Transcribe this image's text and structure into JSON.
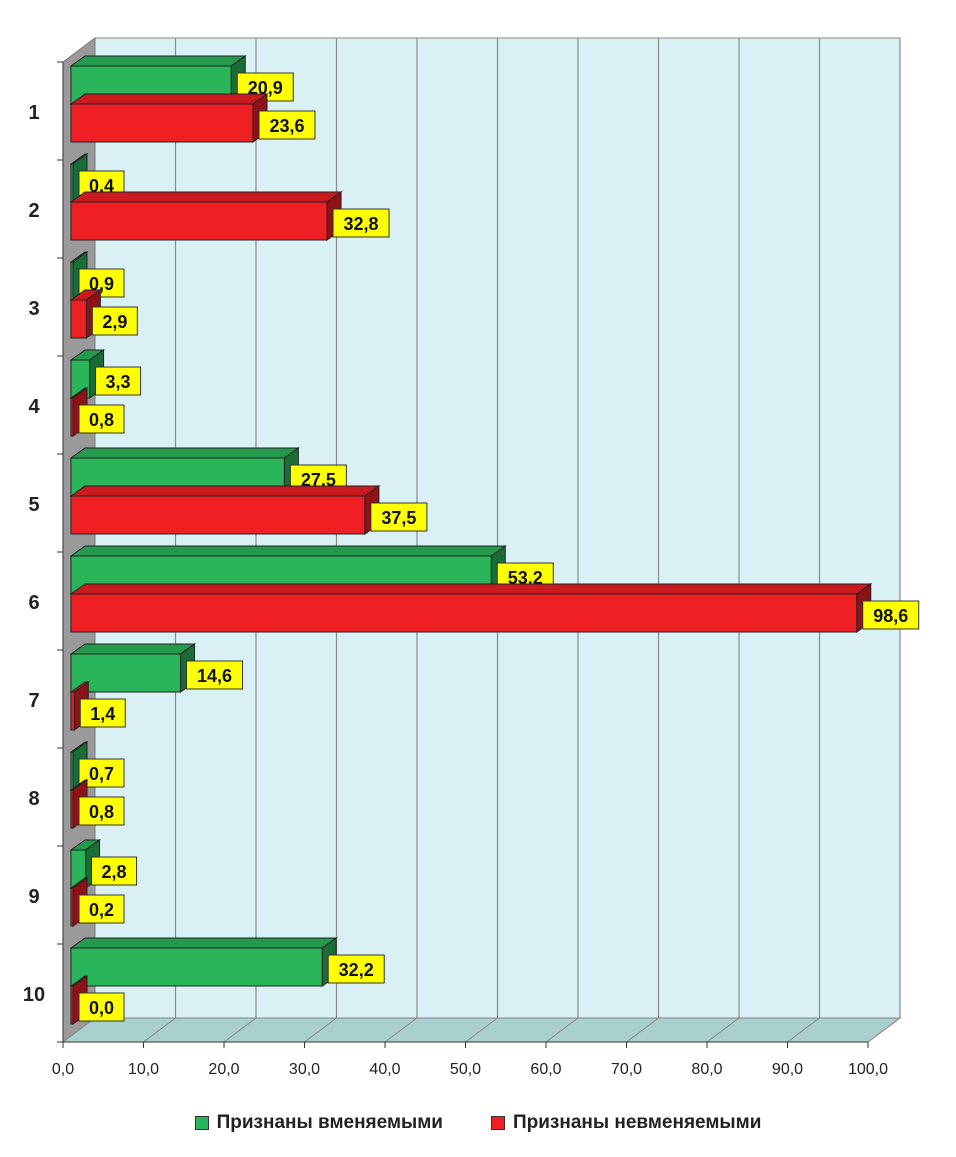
{
  "chart_data": {
    "type": "bar",
    "orientation": "horizontal",
    "three_d": true,
    "categories": [
      "1",
      "2",
      "3",
      "4",
      "5",
      "6",
      "7",
      "8",
      "9",
      "10"
    ],
    "series": [
      {
        "name": "Признаны вменяемыми",
        "color": "#2bb55a",
        "values": [
          20.9,
          0.4,
          0.9,
          3.3,
          27.5,
          53.2,
          14.6,
          0.7,
          2.8,
          32.2
        ]
      },
      {
        "name": "Признаны невменяемыми",
        "color": "#ee2024",
        "values": [
          23.6,
          32.8,
          2.9,
          0.8,
          37.5,
          98.6,
          1.4,
          0.8,
          0.2,
          0.0
        ]
      }
    ],
    "value_labels": {
      "s0": [
        "20,9",
        "0,4",
        "0,9",
        "3,3",
        "27,5",
        "53,2",
        "14,6",
        "0,7",
        "2,8",
        "32,2"
      ],
      "s1": [
        "23,6",
        "32,8",
        "2,9",
        "0,8",
        "37,5",
        "98,6",
        "1,4",
        "0,8",
        "0,2",
        "0,0"
      ]
    },
    "x_ticks": [
      "0,0",
      "10,0",
      "20,0",
      "30,0",
      "40,0",
      "50,0",
      "60,0",
      "70,0",
      "80,0",
      "90,0",
      "100,0"
    ],
    "xlim": [
      0,
      100
    ],
    "grid": true,
    "legend_position": "bottom",
    "plot_background": "#d9f0f5",
    "label_background": "#ffff00",
    "title": "",
    "xlabel": "",
    "ylabel": ""
  }
}
